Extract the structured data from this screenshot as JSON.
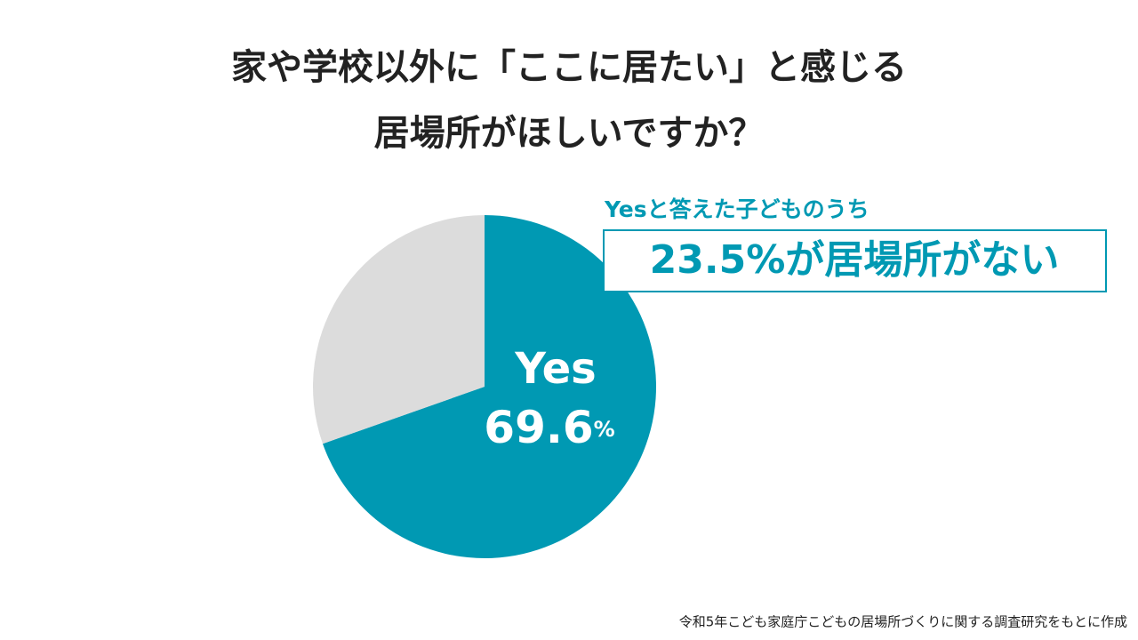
{
  "chart_data": {
    "type": "pie",
    "title": [
      "家や学校以外に「ここに居たい」と感じる",
      "居場所がほしいですか？"
    ],
    "categories": [
      "Yes",
      null
    ],
    "values": [
      69.6,
      30.4
    ],
    "value_labels": [
      "69.6%",
      null
    ],
    "colors": [
      "#0099b3",
      "#dcdcdc"
    ],
    "annotation": {
      "subtitle": "Yesと答えた子どものうち",
      "highlight": "23.5%が居場所がない"
    },
    "source": "令和5年こども家庭庁こどもの居場所づくりに関する調査研究をもとに作成"
  }
}
